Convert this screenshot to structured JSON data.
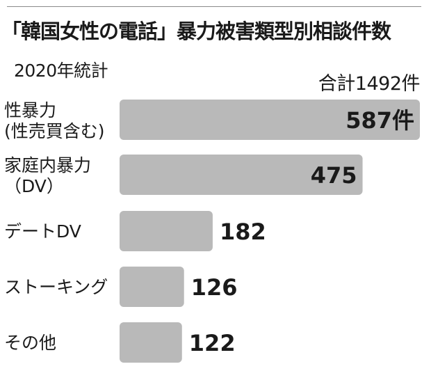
{
  "chart_data": {
    "type": "bar",
    "orientation": "horizontal",
    "title": "「韓国女性の電話」暴力被害類型別相談件数",
    "subtitle": "2020年統計",
    "total_label": "合計1492件",
    "categories": [
      [
        "性暴力",
        "(性売買含む)"
      ],
      [
        "家庭内暴力",
        "（DV）"
      ],
      [
        "デートDV"
      ],
      [
        "ストーキング"
      ],
      [
        "その他"
      ]
    ],
    "values": [
      587,
      475,
      182,
      126,
      122
    ],
    "value_labels": [
      "587件",
      "475",
      "182",
      "126",
      "122"
    ],
    "colors": {
      "bar": "#b9b9b9",
      "text": "#1a1a1a",
      "rule": "#8a8a8a"
    }
  }
}
